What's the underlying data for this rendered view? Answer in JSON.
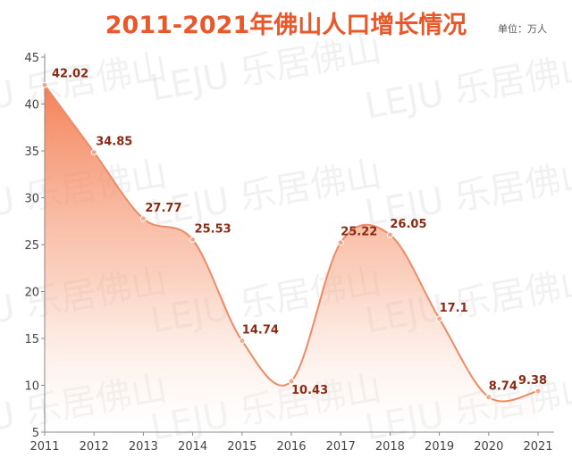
{
  "title": "2011-2021年佛山人口增长情况",
  "unit": "单位：万人",
  "watermark": "LEJU 乐居佛山",
  "colors": {
    "accent": "#e8582a",
    "line": "#f08a64",
    "dot": "#f0a98a",
    "label": "#8a2a14"
  },
  "chart_data": {
    "type": "area",
    "title": "2011-2021年佛山人口增长情况",
    "xlabel": "",
    "ylabel": "",
    "unit": "单位：万人",
    "categories": [
      "2011",
      "2012",
      "2013",
      "2014",
      "2015",
      "2016",
      "2017",
      "2018",
      "2019",
      "2020",
      "2021"
    ],
    "values": [
      42.02,
      34.85,
      27.77,
      25.53,
      14.74,
      10.43,
      25.22,
      26.05,
      17.1,
      8.74,
      9.38
    ],
    "value_labels": [
      "42.02",
      "34.85",
      "27.77",
      "25.53",
      "14.74",
      "10.43",
      "25.22",
      "26.05",
      "17.1",
      "8.74",
      "9.38"
    ],
    "yticks": [
      "5",
      "10",
      "15",
      "20",
      "25",
      "30",
      "35",
      "40",
      "45"
    ],
    "ylim": [
      5,
      45
    ],
    "grid": false,
    "smooth": true
  }
}
